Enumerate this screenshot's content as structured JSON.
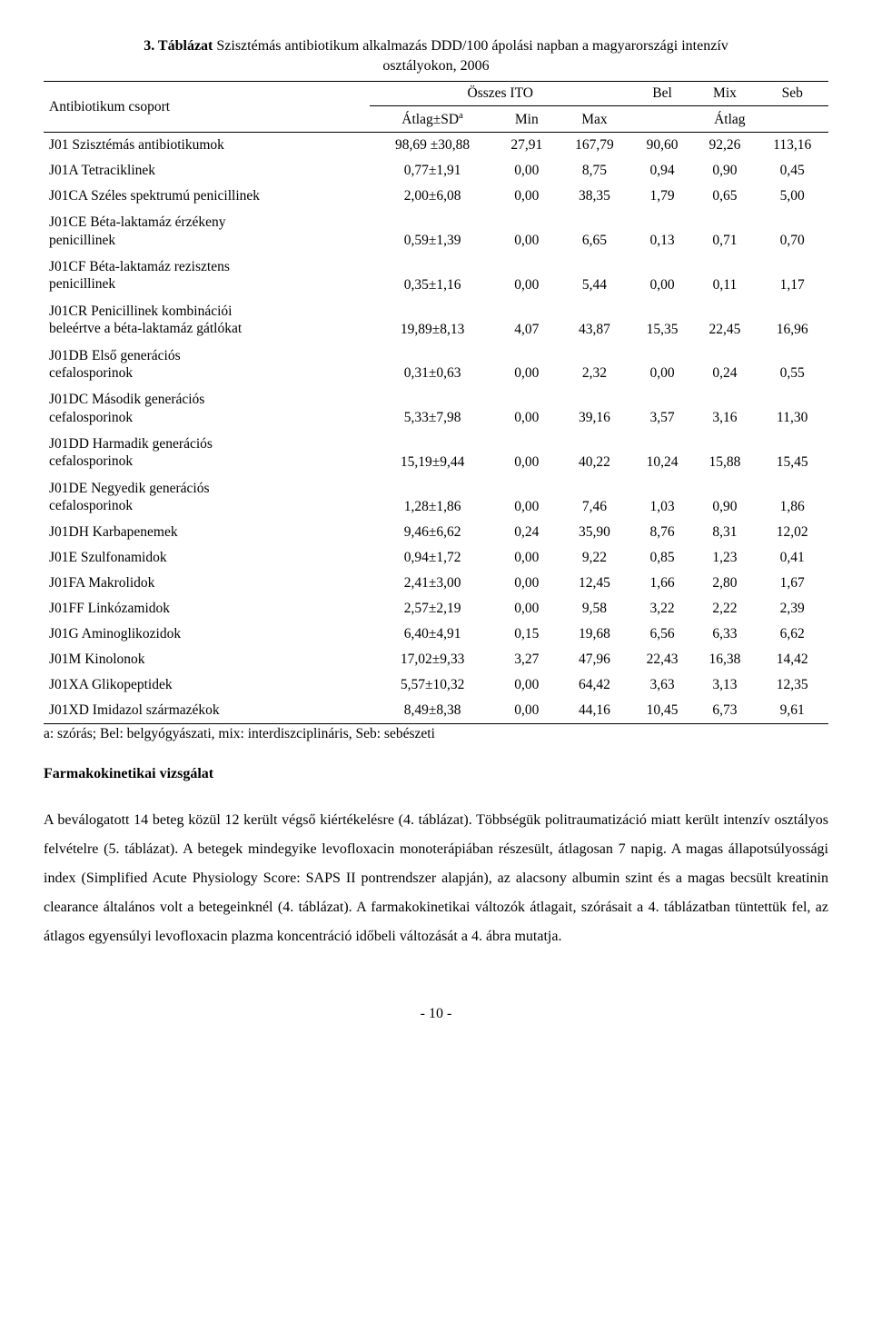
{
  "title": {
    "bold_prefix": "3. Táblázat",
    "rest_line1": " Szisztémás antibiotikum alkalmazás DDD/100 ápolási napban a magyarországi intenzív",
    "line2": "osztályokon, 2006"
  },
  "header": {
    "col_group": "Antibiotikum csoport",
    "osszes": "Összes ITO",
    "bel": "Bel",
    "mix": "Mix",
    "seb": "Seb",
    "mean_sd": "Átlag±SD",
    "sup_a": "a",
    "min": "Min",
    "max": "Max",
    "mean": "Átlag"
  },
  "rows": [
    {
      "label": "J01 Szisztémás antibiotikumok",
      "sd": "98,69 ±30,88",
      "min": "27,91",
      "max": "167,79",
      "bel": "90,60",
      "mix": "92,26",
      "seb": "113,16"
    },
    {
      "label": "J01A Tetraciklinek",
      "sd": "0,77±1,91",
      "min": "0,00",
      "max": "8,75",
      "bel": "0,94",
      "mix": "0,90",
      "seb": "0,45"
    },
    {
      "label": "J01CA Széles spektrumú penicillinek",
      "sd": "2,00±6,08",
      "min": "0,00",
      "max": "38,35",
      "bel": "1,79",
      "mix": "0,65",
      "seb": "5,00"
    },
    {
      "label": "J01CE Béta-laktamáz érzékeny\npenicillinek",
      "sd": "0,59±1,39",
      "min": "0,00",
      "max": "6,65",
      "bel": "0,13",
      "mix": "0,71",
      "seb": "0,70"
    },
    {
      "label": "J01CF Béta-laktamáz rezisztens\npenicillinek",
      "sd": "0,35±1,16",
      "min": "0,00",
      "max": "5,44",
      "bel": "0,00",
      "mix": "0,11",
      "seb": "1,17"
    },
    {
      "label": "J01CR Penicillinek kombinációi\nbeleértve a béta-laktamáz gátlókat",
      "sd": "19,89±8,13",
      "min": "4,07",
      "max": "43,87",
      "bel": "15,35",
      "mix": "22,45",
      "seb": "16,96"
    },
    {
      "label": "J01DB Első generációs\ncefalosporinok",
      "sd": "0,31±0,63",
      "min": "0,00",
      "max": "2,32",
      "bel": "0,00",
      "mix": "0,24",
      "seb": "0,55"
    },
    {
      "label": "J01DC Második generációs\ncefalosporinok",
      "sd": "5,33±7,98",
      "min": "0,00",
      "max": "39,16",
      "bel": "3,57",
      "mix": "3,16",
      "seb": "11,30"
    },
    {
      "label": "J01DD Harmadik generációs\ncefalosporinok",
      "sd": "15,19±9,44",
      "min": "0,00",
      "max": "40,22",
      "bel": "10,24",
      "mix": "15,88",
      "seb": "15,45"
    },
    {
      "label": "J01DE Negyedik generációs\ncefalosporinok",
      "sd": "1,28±1,86",
      "min": "0,00",
      "max": "7,46",
      "bel": "1,03",
      "mix": "0,90",
      "seb": "1,86"
    },
    {
      "label": "J01DH Karbapenemek",
      "sd": "9,46±6,62",
      "min": "0,24",
      "max": "35,90",
      "bel": "8,76",
      "mix": "8,31",
      "seb": "12,02"
    },
    {
      "label": "J01E Szulfonamidok",
      "sd": "0,94±1,72",
      "min": "0,00",
      "max": "9,22",
      "bel": "0,85",
      "mix": "1,23",
      "seb": "0,41"
    },
    {
      "label": "J01FA Makrolidok",
      "sd": "2,41±3,00",
      "min": "0,00",
      "max": "12,45",
      "bel": "1,66",
      "mix": "2,80",
      "seb": "1,67"
    },
    {
      "label": "J01FF Linkózamidok",
      "sd": "2,57±2,19",
      "min": "0,00",
      "max": "9,58",
      "bel": "3,22",
      "mix": "2,22",
      "seb": "2,39"
    },
    {
      "label": "J01G Aminoglikozidok",
      "sd": "6,40±4,91",
      "min": "0,15",
      "max": "19,68",
      "bel": "6,56",
      "mix": "6,33",
      "seb": "6,62"
    },
    {
      "label": "J01M Kinolonok",
      "sd": "17,02±9,33",
      "min": "3,27",
      "max": "47,96",
      "bel": "22,43",
      "mix": "16,38",
      "seb": "14,42"
    },
    {
      "label": "J01XA Glikopeptidek",
      "sd": "5,57±10,32",
      "min": "0,00",
      "max": "64,42",
      "bel": "3,63",
      "mix": "3,13",
      "seb": "12,35"
    },
    {
      "label": "J01XD Imidazol származékok",
      "sd": "8,49±8,38",
      "min": "0,00",
      "max": "44,16",
      "bel": "10,45",
      "mix": "6,73",
      "seb": "9,61"
    }
  ],
  "footnote": "a: szórás; Bel: belgyógyászati, mix: interdiszciplináris, Seb: sebészeti",
  "section_head": "Farmakokinetikai vizsgálat",
  "paragraph": "A beválogatott 14 beteg közül 12 került végső kiértékelésre (4. táblázat). Többségük politraumatizáció miatt került intenzív osztályos felvételre (5. táblázat). A betegek mindegyike levofloxacin monoterápiában részesült, átlagosan 7 napig. A magas állapotsúlyossági index (Simplified Acute Physiology Score: SAPS II pontrendszer alapján), az alacsony albumin szint és a magas becsült kreatinin clearance általános volt a betegeinknél (4. táblázat). A farmakokinetikai változók átlagait, szórásait a 4. táblázatban tüntettük fel, az átlagos egyensúlyi levofloxacin plazma koncentráció időbeli változását a 4. ábra mutatja.",
  "page_number": "- 10 -",
  "style": {
    "font_family": "Times New Roman",
    "body_fontsize_pt": 12,
    "text_color": "#000000",
    "background_color": "#ffffff",
    "border_color": "#000000",
    "line_height_para": 2.0
  }
}
